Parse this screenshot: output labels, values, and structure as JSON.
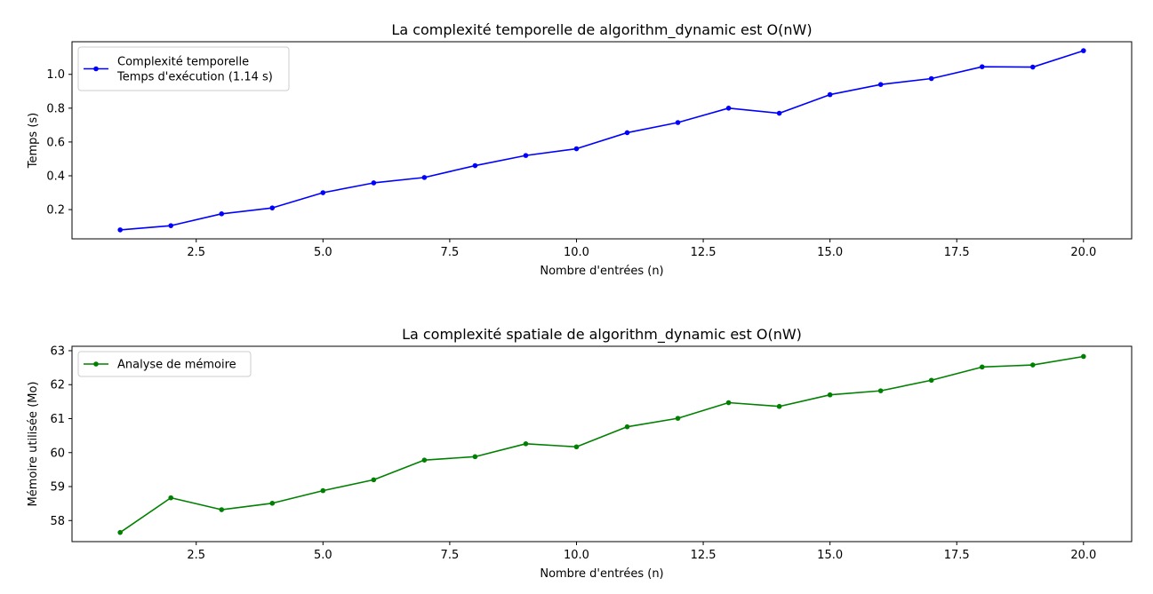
{
  "chart_data": [
    {
      "type": "line",
      "title": "La complexité temporelle de algorithm_dynamic est O(nW)",
      "xlabel": "Nombre d'entrées (n)",
      "ylabel": "Temps (s)",
      "xlim": [
        0.05,
        20.95
      ],
      "ylim": [
        0.027,
        1.193
      ],
      "xticks": [
        2.5,
        5.0,
        7.5,
        10.0,
        12.5,
        15.0,
        17.5,
        20.0
      ],
      "xtick_labels": [
        "2.5",
        "5.0",
        "7.5",
        "10.0",
        "12.5",
        "15.0",
        "17.5",
        "20.0"
      ],
      "yticks": [
        0.2,
        0.4,
        0.6,
        0.8,
        1.0
      ],
      "ytick_labels": [
        "0.2",
        "0.4",
        "0.6",
        "0.8",
        "1.0"
      ],
      "grid": false,
      "legend_position": "top-left",
      "series": [
        {
          "name": "Complexité temporelle",
          "legend_lines": [
            "Complexité temporelle",
            "Temps d'exécution (1.14 s)"
          ],
          "color": "#0000ff",
          "x": [
            1,
            2,
            3,
            4,
            5,
            6,
            7,
            8,
            9,
            10,
            11,
            12,
            13,
            14,
            15,
            16,
            17,
            18,
            19,
            20
          ],
          "y": [
            0.08,
            0.105,
            0.175,
            0.21,
            0.3,
            0.358,
            0.39,
            0.46,
            0.52,
            0.56,
            0.655,
            0.715,
            0.8,
            0.77,
            0.88,
            0.94,
            0.975,
            1.045,
            1.043,
            1.14
          ]
        }
      ]
    },
    {
      "type": "line",
      "title": "La complexité spatiale de algorithm_dynamic est O(nW)",
      "xlabel": "Nombre d'entrées (n)",
      "ylabel": "Mémoire utilisée (Mo)",
      "xlim": [
        0.05,
        20.95
      ],
      "ylim": [
        57.38,
        63.13
      ],
      "xticks": [
        2.5,
        5.0,
        7.5,
        10.0,
        12.5,
        15.0,
        17.5,
        20.0
      ],
      "xtick_labels": [
        "2.5",
        "5.0",
        "7.5",
        "10.0",
        "12.5",
        "15.0",
        "17.5",
        "20.0"
      ],
      "yticks": [
        58,
        59,
        60,
        61,
        62,
        63
      ],
      "ytick_labels": [
        "58",
        "59",
        "60",
        "61",
        "62",
        "63"
      ],
      "grid": false,
      "legend_position": "top-left",
      "series": [
        {
          "name": "Analyse de mémoire",
          "legend_lines": [
            "Analyse de mémoire"
          ],
          "color": "#008000",
          "x": [
            1,
            2,
            3,
            4,
            5,
            6,
            7,
            8,
            9,
            10,
            11,
            12,
            13,
            14,
            15,
            16,
            17,
            18,
            19,
            20
          ],
          "y": [
            57.65,
            58.67,
            58.32,
            58.51,
            58.88,
            59.2,
            59.78,
            59.88,
            60.26,
            60.17,
            60.76,
            61.01,
            61.47,
            61.36,
            61.7,
            61.82,
            62.13,
            62.52,
            62.58,
            62.83
          ]
        }
      ]
    }
  ]
}
